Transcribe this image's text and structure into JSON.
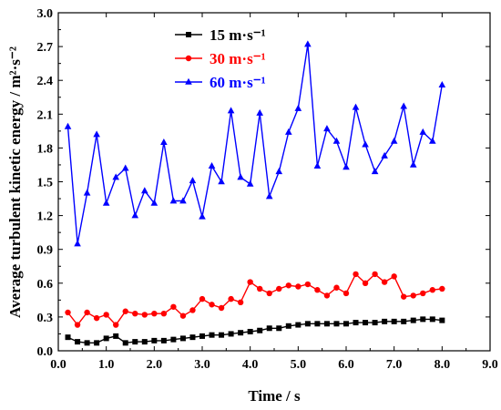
{
  "chart_data": {
    "type": "line",
    "xlabel": "Time / s",
    "ylabel": "Average turbulent kinetic energy / m²·s⁻²",
    "xlim": [
      0,
      9
    ],
    "ylim": [
      0,
      3
    ],
    "xticks": [
      "0.0",
      "1.0",
      "2.0",
      "3.0",
      "4.0",
      "5.0",
      "6.0",
      "7.0",
      "8.0",
      "9.0"
    ],
    "yticks": [
      "0.0",
      "0.3",
      "0.6",
      "0.9",
      "1.2",
      "1.5",
      "1.8",
      "2.1",
      "2.4",
      "2.7",
      "3.0"
    ],
    "legend_position": "top-left",
    "x": [
      0.2,
      0.4,
      0.6,
      0.8,
      1.0,
      1.2,
      1.4,
      1.6,
      1.8,
      2.0,
      2.2,
      2.4,
      2.6,
      2.8,
      3.0,
      3.2,
      3.4,
      3.6,
      3.8,
      4.0,
      4.2,
      4.4,
      4.6,
      4.8,
      5.0,
      5.2,
      5.4,
      5.6,
      5.8,
      6.0,
      6.2,
      6.4,
      6.6,
      6.8,
      7.0,
      7.2,
      7.4,
      7.6,
      7.8,
      8.0
    ],
    "series": [
      {
        "name": "15 m·s⁻¹",
        "color": "#000000",
        "marker": "square",
        "values": [
          0.12,
          0.08,
          0.07,
          0.07,
          0.11,
          0.13,
          0.07,
          0.08,
          0.08,
          0.09,
          0.09,
          0.1,
          0.11,
          0.12,
          0.13,
          0.14,
          0.14,
          0.15,
          0.16,
          0.17,
          0.18,
          0.2,
          0.2,
          0.22,
          0.23,
          0.24,
          0.24,
          0.24,
          0.24,
          0.24,
          0.25,
          0.25,
          0.25,
          0.26,
          0.26,
          0.26,
          0.27,
          0.28,
          0.28,
          0.27
        ]
      },
      {
        "name": "30 m·s⁻¹",
        "color": "#ff0000",
        "marker": "circle",
        "values": [
          0.34,
          0.23,
          0.34,
          0.29,
          0.32,
          0.23,
          0.35,
          0.33,
          0.32,
          0.33,
          0.33,
          0.39,
          0.31,
          0.36,
          0.46,
          0.41,
          0.38,
          0.46,
          0.43,
          0.61,
          0.55,
          0.51,
          0.55,
          0.58,
          0.57,
          0.59,
          0.54,
          0.49,
          0.56,
          0.51,
          0.68,
          0.6,
          0.68,
          0.61,
          0.66,
          0.48,
          0.49,
          0.51,
          0.54,
          0.55
        ]
      },
      {
        "name": "60 m·s⁻¹",
        "color": "#0000ff",
        "marker": "triangle",
        "values": [
          1.99,
          0.95,
          1.4,
          1.92,
          1.31,
          1.54,
          1.62,
          1.2,
          1.42,
          1.31,
          1.85,
          1.33,
          1.33,
          1.51,
          1.19,
          1.64,
          1.5,
          2.13,
          1.54,
          1.48,
          2.11,
          1.37,
          1.59,
          1.94,
          2.15,
          2.72,
          1.64,
          1.97,
          1.86,
          1.63,
          2.16,
          1.83,
          1.59,
          1.73,
          1.86,
          2.17,
          1.65,
          1.94,
          1.86,
          2.36
        ]
      }
    ]
  }
}
